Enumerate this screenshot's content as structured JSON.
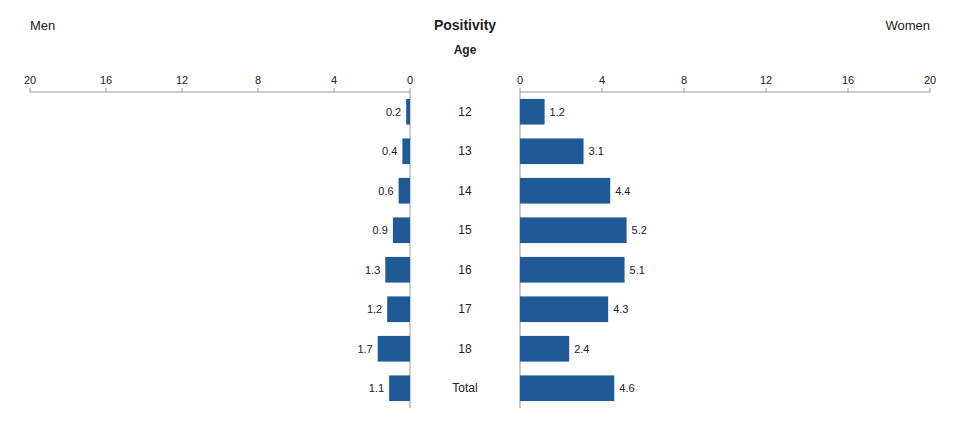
{
  "chart_data": {
    "type": "bar",
    "orientation": "horizontal",
    "title": "Positivity",
    "y_label": "Age",
    "categories": [
      "12",
      "13",
      "14",
      "15",
      "16",
      "17",
      "18",
      "Total"
    ],
    "series": [
      {
        "name": "Men",
        "color": "#1F5A96",
        "values": [
          0.2,
          0.4,
          0.6,
          0.9,
          1.3,
          1.2,
          1.7,
          1.1
        ]
      },
      {
        "name": "Women",
        "color": "#1F5A96",
        "values": [
          1.2,
          3.1,
          4.4,
          5.2,
          5.1,
          4.3,
          2.4,
          4.6
        ]
      }
    ],
    "xlim": [
      0,
      20
    ],
    "xticks": [
      0,
      4,
      8,
      12,
      16,
      20
    ],
    "data_labels": true
  }
}
